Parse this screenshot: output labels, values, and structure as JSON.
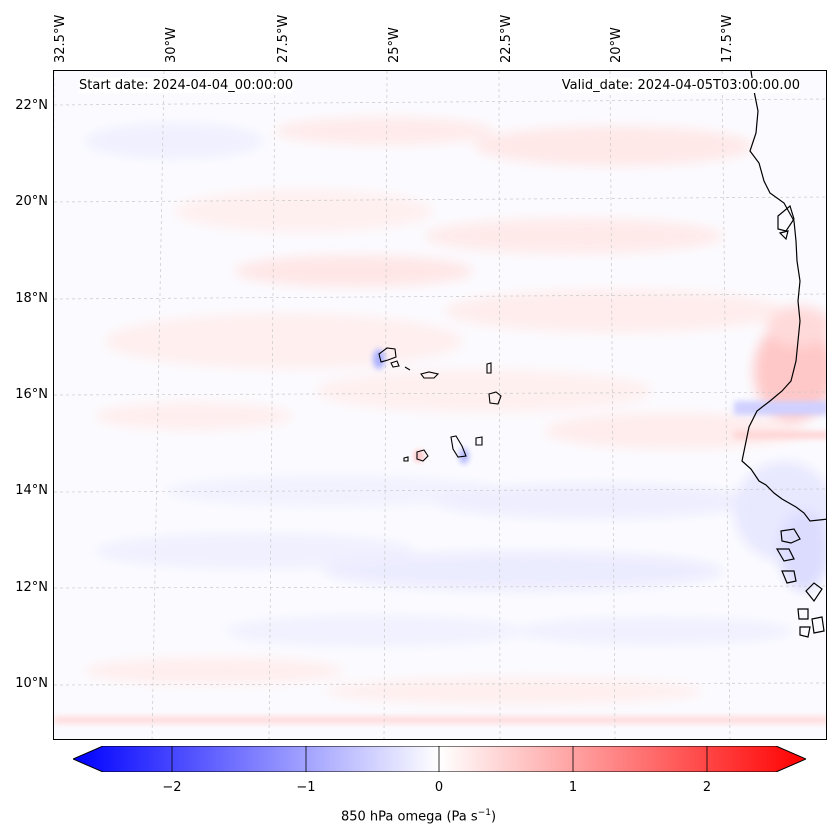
{
  "map": {
    "title_left": "Start date: 2024-04-04_00:00:00",
    "title_right": "Valid_date: 2024-04-05T03:00:00.00",
    "variable": "850 hPa omega",
    "units_main": "Pa s",
    "units_exp": "−1",
    "lon_labels": [
      "32.5°W",
      "30°W",
      "27.5°W",
      "25°W",
      "22.5°W",
      "20°W",
      "17.5°W"
    ],
    "lat_labels": [
      "22°N",
      "20°N",
      "18°N",
      "16°N",
      "14°N",
      "12°N",
      "10°N"
    ],
    "colorbar_ticks": [
      "−2",
      "−1",
      "0",
      "1",
      "2"
    ],
    "colorbar_range": [
      -2.7,
      2.7
    ]
  },
  "colors": {
    "negative": "#0000ff",
    "positive": "#ff0000",
    "neutral": "#ffffff"
  }
}
